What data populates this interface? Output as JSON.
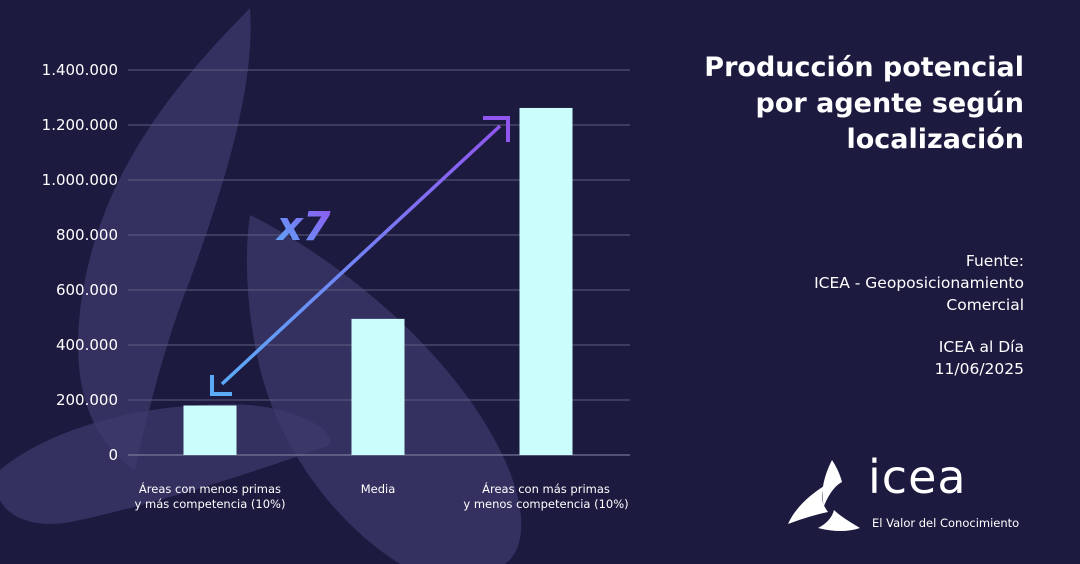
{
  "title_lines": [
    "Producción potencial",
    "por agente según",
    "localización"
  ],
  "source": {
    "label": "Fuente:",
    "line1": "ICEA - Geoposicionamiento",
    "line2": "Comercial"
  },
  "publication": {
    "name": "ICEA al Día",
    "date": "11/06/2025"
  },
  "logo": {
    "word": "icea",
    "tagline": "El Valor del Conocimiento"
  },
  "colors": {
    "background": "#1c1a3f",
    "bar": "#ccfdfd",
    "gridline": "#5e5c7e",
    "arrow_start": "#5aaaf8",
    "arrow_end": "#8f56f0",
    "shape": "#3c3a6c"
  },
  "chart_data": {
    "type": "bar",
    "categories": [
      [
        "Áreas con menos primas",
        "y más competencia (10%)"
      ],
      [
        "Media"
      ],
      [
        "Áreas con más primas",
        "y menos competencia (10%)"
      ]
    ],
    "values": [
      180000,
      495000,
      1262000
    ],
    "ylim": [
      0,
      1400000
    ],
    "yticks": [
      "0",
      "200.000",
      "400.000",
      "600.000",
      "800.000",
      "1.000.000",
      "1.200.000",
      "1.400.000"
    ],
    "grid": true,
    "annotation": "x7"
  }
}
